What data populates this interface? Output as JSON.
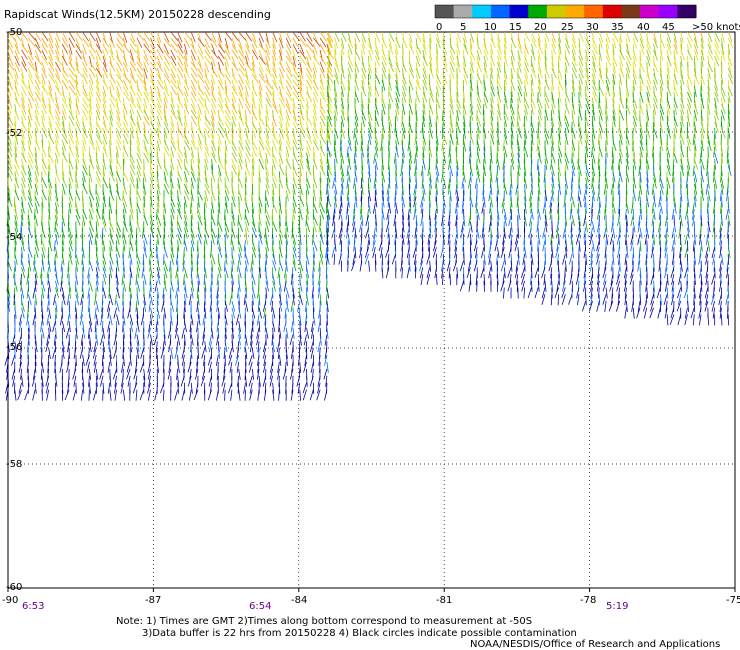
{
  "title": "Rapidscat Winds(12.5KM) 20150228 descending",
  "legend": {
    "ticks": [
      "0",
      "5",
      "10",
      "15",
      "20",
      "25",
      "30",
      "35",
      "40",
      "45",
      ">50 knots"
    ],
    "colors": [
      "#555555",
      "#aaaaaa",
      "#00ccff",
      "#0066ff",
      "#0000cc",
      "#00aa00",
      "#cccc00",
      "#ffaa00",
      "#ff6600",
      "#dd0000",
      "#7a3a1a",
      "#cc00cc",
      "#9900ff",
      "#330066"
    ]
  },
  "axes": {
    "x_ticks": [
      "-90",
      "-87",
      "-84",
      "-81",
      "-78",
      "-75"
    ],
    "y_ticks": [
      "-50",
      "-52",
      "-54",
      "-56",
      "-58",
      "-60"
    ]
  },
  "swaths": [
    {
      "id": "west",
      "lon_range": [
        -90,
        -83.4
      ],
      "lat_range": [
        -50,
        -56.8
      ],
      "time": "6:53"
    },
    {
      "id": "mid",
      "time": "6:54"
    },
    {
      "id": "east",
      "lon_range": [
        -83.4,
        -75
      ],
      "lat_range": [
        -50,
        -55.5
      ],
      "time": "5:19"
    }
  ],
  "notes": {
    "line1": "Note: 1) Times are GMT 2)Times along bottom correspond to measurement at -50S",
    "line2": "3)Data buffer is 22 hrs from 20150228 4) Black circles indicate possible contamination",
    "credit": "NOAA/NESDIS/Office of Research and Applications"
  }
}
